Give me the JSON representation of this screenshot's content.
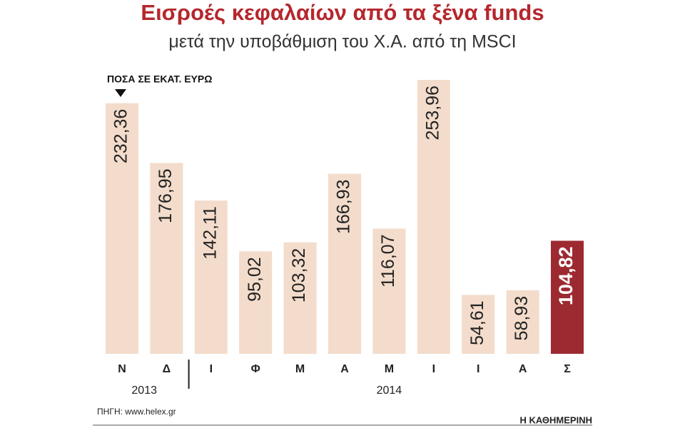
{
  "chart_data": {
    "type": "bar",
    "title": "Εισροές κεφαλαίων από τα ξένα funds",
    "subtitle": "μετά την υποβάθμιση του Χ.Α. από τη MSCI",
    "unit_label": "ΠΟΣΑ ΣΕ ΕΚΑΤ. ΕΥΡΩ",
    "groups": [
      {
        "label": "2013",
        "categories": [
          "Ν",
          "Δ"
        ]
      },
      {
        "label": "2014",
        "categories": [
          "Ι",
          "Φ",
          "Μ",
          "Α",
          "Μ",
          "Ι",
          "Ι",
          "Α",
          "Σ"
        ]
      }
    ],
    "values": [
      232.36,
      176.95,
      142.11,
      95.02,
      103.32,
      166.93,
      116.07,
      253.96,
      54.61,
      58.93,
      104.82
    ],
    "value_labels": [
      "232,36",
      "176,95",
      "142,11",
      "95,02",
      "103,32",
      "166,93",
      "116,07",
      "253,96",
      "54,61",
      "58,93",
      "104,82"
    ],
    "colors": [
      "#f3dccb",
      "#f3dccb",
      "#f3dccb",
      "#f3dccb",
      "#f3dccb",
      "#f3dccb",
      "#f3dccb",
      "#f3dccb",
      "#f3dccb",
      "#f3dccb",
      "#9d2a31"
    ],
    "source": "ΠΗΓΗ: www.helex.gr",
    "brand": "Η ΚΑΘΗΜΕΡΙΝΗ"
  }
}
